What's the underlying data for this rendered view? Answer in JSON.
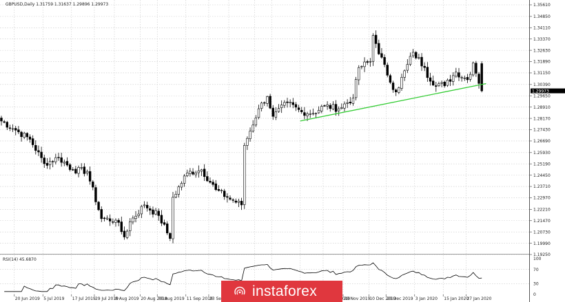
{
  "header": {
    "symbol_info": "GBPUSD,Daily  1.31759 1.31637 1.29896 1.29973"
  },
  "rsi_panel": {
    "label": "RSI(14) 45.6870",
    "levels": [
      "100",
      "70",
      "30",
      "0"
    ]
  },
  "watermark": {
    "brand": "instaforex",
    "color": "#e0373e"
  },
  "colors": {
    "candle": "#000000",
    "trendline": "#33cc33",
    "grid": "#c8c8c8",
    "price_tag": "#000000",
    "rsi_line": "#000000"
  },
  "chart_data": {
    "type": "candlestick",
    "symbol": "GBPUSD",
    "timeframe": "Daily",
    "ohlc_header": {
      "open": 1.31759,
      "high": 1.31637,
      "low": 1.29896,
      "close": 1.29973
    },
    "last_price": "1.29973",
    "price_axis_ticks": [
      "1.35610",
      "1.34850",
      "1.34110",
      "1.33370",
      "1.32630",
      "1.31890",
      "1.31150",
      "1.30390",
      "1.29650",
      "1.28910",
      "1.28170",
      "1.27430",
      "1.26690",
      "1.25930",
      "1.25190",
      "1.24450",
      "1.23710",
      "1.22970",
      "1.22210",
      "1.21470",
      "1.20730",
      "1.19990",
      "1.19250"
    ],
    "ylim": [
      1.1925,
      1.3561
    ],
    "date_axis_ticks": [
      "20 Jun 2019",
      "5 Jul 2019",
      "17 Jul 2019",
      "29 Jul 2019",
      "8 Aug 2019",
      "20 Aug 2019",
      "30 Aug 2019",
      "11 Sep 2019",
      "23 Sep 2019",
      "3 Oct 2019",
      "15 Oct 2019",
      "25 Oct 2019",
      "6 Nov 2019",
      "18 Nov 2019",
      "28 Nov 2019",
      "10 Dec 2019",
      "20 Dec 2019",
      "3 Jan 2020",
      "15 Jan 2020",
      "27 Jan 2020"
    ],
    "grid": true,
    "pivots": [
      {
        "date": "2019-06-20",
        "close": 1.274
      },
      {
        "date": "2019-06-28",
        "close": 1.268
      },
      {
        "date": "2019-07-05",
        "close": 1.252
      },
      {
        "date": "2019-07-12",
        "close": 1.256
      },
      {
        "date": "2019-07-17",
        "close": 1.248
      },
      {
        "date": "2019-07-24",
        "close": 1.247
      },
      {
        "date": "2019-07-31",
        "close": 1.216
      },
      {
        "date": "2019-08-07",
        "close": 1.215
      },
      {
        "date": "2019-08-12",
        "close": 1.204
      },
      {
        "date": "2019-08-16",
        "close": 1.214
      },
      {
        "date": "2019-08-23",
        "close": 1.225
      },
      {
        "date": "2019-08-28",
        "close": 1.218
      },
      {
        "date": "2019-09-03",
        "close": 1.203
      },
      {
        "date": "2019-09-06",
        "close": 1.23
      },
      {
        "date": "2019-09-13",
        "close": 1.246
      },
      {
        "date": "2019-09-20",
        "close": 1.248
      },
      {
        "date": "2019-09-25",
        "close": 1.235
      },
      {
        "date": "2019-10-01",
        "close": 1.23
      },
      {
        "date": "2019-10-08",
        "close": 1.225
      },
      {
        "date": "2019-10-11",
        "close": 1.264
      },
      {
        "date": "2019-10-17",
        "close": 1.288
      },
      {
        "date": "2019-10-21",
        "close": 1.296
      },
      {
        "date": "2019-10-25",
        "close": 1.283
      },
      {
        "date": "2019-11-01",
        "close": 1.292
      },
      {
        "date": "2019-11-06",
        "close": 1.286
      },
      {
        "date": "2019-11-12",
        "close": 1.285
      },
      {
        "date": "2019-11-18",
        "close": 1.29
      },
      {
        "date": "2019-11-25",
        "close": 1.288
      },
      {
        "date": "2019-12-02",
        "close": 1.295
      },
      {
        "date": "2019-12-06",
        "close": 1.315
      },
      {
        "date": "2019-12-10",
        "close": 1.319
      },
      {
        "date": "2019-12-13",
        "close": 1.336
      },
      {
        "date": "2019-12-18",
        "close": 1.31
      },
      {
        "date": "2019-12-23",
        "close": 1.299
      },
      {
        "date": "2019-12-31",
        "close": 1.325
      },
      {
        "date": "2020-01-06",
        "close": 1.315
      },
      {
        "date": "2020-01-10",
        "close": 1.306
      },
      {
        "date": "2020-01-15",
        "close": 1.303
      },
      {
        "date": "2020-01-21",
        "close": 1.312
      },
      {
        "date": "2020-01-27",
        "close": 1.307
      },
      {
        "date": "2020-01-30",
        "close": 1.318
      },
      {
        "date": "2020-02-03",
        "close": 1.2997
      }
    ],
    "trendline": {
      "from": {
        "date": "2019-11-08",
        "price": 1.28
      },
      "to": {
        "date": "2020-02-07",
        "price": 1.3045
      }
    },
    "rsi": {
      "period": 14,
      "last": 45.687,
      "levels": [
        100,
        70,
        30,
        0
      ]
    }
  }
}
